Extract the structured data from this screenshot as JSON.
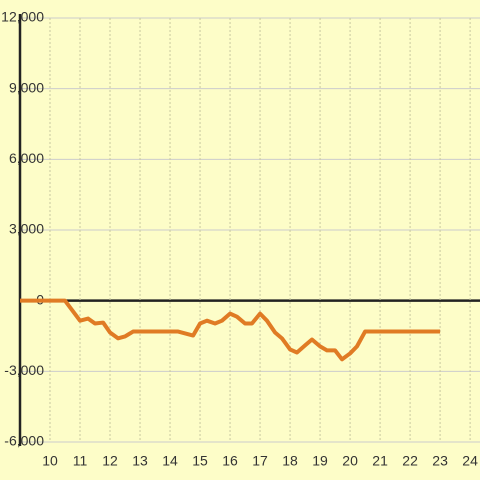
{
  "chart_data": {
    "type": "line",
    "x": [
      9,
      10.5,
      11,
      11.27,
      11.5,
      11.77,
      12,
      12.27,
      12.5,
      12.77,
      14.27,
      14.77,
      15,
      15.23,
      15.5,
      15.73,
      16,
      16.23,
      16.5,
      16.73,
      17,
      17.23,
      17.5,
      17.73,
      18,
      18.23,
      18.5,
      18.73,
      19,
      19.23,
      19.5,
      19.73,
      20,
      20.23,
      20.5,
      23
    ],
    "series": [
      {
        "color": "#e07b24",
        "values": [
          0,
          0,
          -850,
          -760,
          -970,
          -930,
          -1350,
          -1600,
          -1520,
          -1310,
          -1310,
          -1480,
          -970,
          -850,
          -970,
          -850,
          -550,
          -680,
          -970,
          -970,
          -550,
          -850,
          -1350,
          -1600,
          -2070,
          -2200,
          -1900,
          -1650,
          -1940,
          -2110,
          -2110,
          -2490,
          -2240,
          -1940,
          -1310,
          -1310
        ]
      }
    ],
    "xlim": [
      9,
      24.33
    ],
    "xticks": [
      10,
      11,
      12,
      13,
      14,
      15,
      16,
      17,
      18,
      19,
      20,
      21,
      22,
      23,
      24
    ],
    "ylim": [
      -6000,
      12000
    ],
    "yticks": [
      {
        "value": -6000,
        "label": "-6,000"
      },
      {
        "value": -3000,
        "label": "-3,000"
      },
      0,
      {
        "value": 3000,
        "label": "3,000"
      },
      {
        "value": 6000,
        "label": "6,000"
      },
      {
        "value": 9000,
        "label": "9,000"
      },
      {
        "value": 12000,
        "label": "12,000"
      }
    ],
    "grid": true
  }
}
